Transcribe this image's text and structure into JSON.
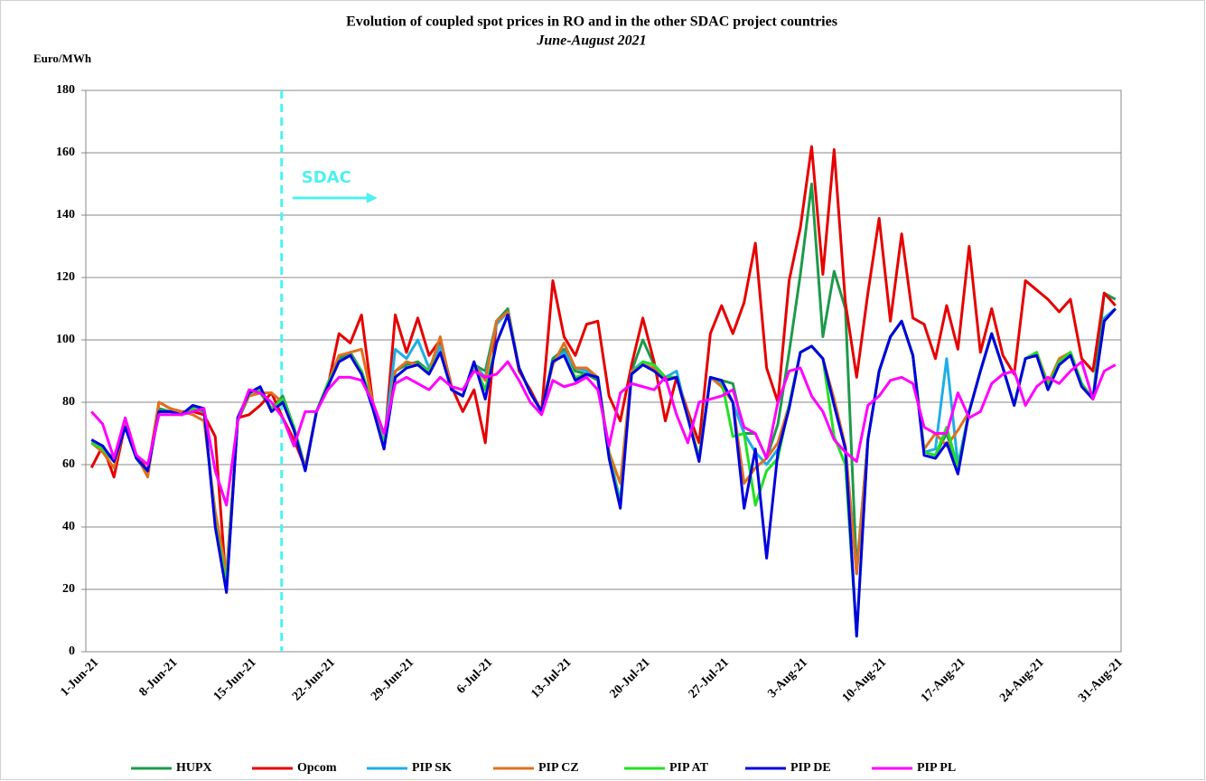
{
  "chart_data": {
    "type": "line",
    "title": "Evolution  of coupled spot prices in RO and in the other SDAC project countries",
    "subtitle": "June-August 2021",
    "y_label": "Euro/MWh",
    "annotation": "SDAC",
    "categories": [
      "1-Jun-21",
      null,
      null,
      null,
      null,
      null,
      null,
      "8-Jun-21",
      null,
      null,
      null,
      null,
      null,
      null,
      "15-Jun-21",
      null,
      null,
      null,
      null,
      null,
      null,
      "22-Jun-21",
      null,
      null,
      null,
      null,
      null,
      null,
      "29-Jun-21",
      null,
      null,
      null,
      null,
      null,
      null,
      "6-Jul-21",
      null,
      null,
      null,
      null,
      null,
      null,
      "13-Jul-21",
      null,
      null,
      null,
      null,
      null,
      null,
      "20-Jul-21",
      null,
      null,
      null,
      null,
      null,
      null,
      "27-Jul-21",
      null,
      null,
      null,
      null,
      null,
      null,
      "3-Aug-21",
      null,
      null,
      null,
      null,
      null,
      null,
      "10-Aug-21",
      null,
      null,
      null,
      null,
      null,
      null,
      "17-Aug-21",
      null,
      null,
      null,
      null,
      null,
      null,
      "24-Aug-21",
      null,
      null,
      null,
      null,
      null,
      null,
      "31-Aug-21"
    ],
    "ylim": [
      0,
      180
    ],
    "yticks": [
      0,
      20,
      40,
      60,
      80,
      100,
      120,
      140,
      160,
      180
    ],
    "grid": true,
    "legend": "bottom",
    "series": [
      {
        "name": "HUPX",
        "color": "#1e9a4a",
        "values": [
          67,
          65,
          62,
          72,
          62,
          57,
          78,
          77,
          76,
          78,
          77,
          42,
          25,
          74,
          82,
          83,
          78,
          82,
          72,
          59,
          77,
          86,
          94,
          96,
          90,
          79,
          66,
          90,
          92,
          93,
          90,
          100,
          84,
          82,
          92,
          90,
          106,
          110,
          91,
          83,
          77,
          94,
          97,
          90,
          89,
          87,
          63,
          48,
          90,
          100,
          92,
          88,
          88,
          76,
          62,
          88,
          87,
          86,
          70,
          70,
          62,
          73,
          96,
          121,
          150,
          101,
          122,
          110,
          26,
          68,
          90,
          101,
          106,
          95,
          64,
          63,
          70,
          59,
          77,
          90,
          102,
          91,
          79,
          94,
          96,
          85,
          93,
          96,
          86,
          81,
          115,
          113
        ]
      },
      {
        "name": "Opcom",
        "color": "#e60000",
        "values": [
          59,
          66,
          56,
          73,
          63,
          58,
          80,
          78,
          77,
          77,
          76,
          69,
          20,
          75,
          76,
          79,
          83,
          75,
          68,
          59,
          77,
          85,
          102,
          99,
          108,
          80,
          65,
          108,
          96,
          107,
          95,
          100,
          85,
          77,
          84,
          67,
          106,
          109,
          90,
          84,
          77,
          119,
          101,
          95,
          105,
          106,
          82,
          74,
          92,
          107,
          93,
          74,
          88,
          77,
          67,
          102,
          111,
          102,
          112,
          131,
          91,
          80,
          119,
          136,
          162,
          121,
          161,
          112,
          88,
          115,
          139,
          106,
          134,
          107,
          105,
          94,
          111,
          97,
          130,
          96,
          110,
          95,
          89,
          119,
          116,
          113,
          109,
          113,
          94,
          90,
          115,
          111
        ]
      },
      {
        "name": "PIP SK",
        "color": "#1eaee6",
        "values": [
          67,
          65,
          62,
          72,
          62,
          58,
          77,
          77,
          76,
          78,
          78,
          41,
          22,
          75,
          83,
          84,
          78,
          81,
          72,
          59,
          77,
          86,
          93,
          95,
          90,
          79,
          67,
          97,
          94,
          100,
          91,
          98,
          84,
          82,
          92,
          88,
          105,
          109,
          91,
          83,
          77,
          93,
          96,
          91,
          90,
          88,
          64,
          48,
          90,
          93,
          92,
          88,
          90,
          75,
          62,
          88,
          86,
          80,
          70,
          64,
          60,
          65,
          79,
          96,
          98,
          94,
          80,
          65,
          25,
          68,
          90,
          101,
          106,
          95,
          64,
          65,
          94,
          60,
          77,
          90,
          102,
          91,
          79,
          94,
          96,
          85,
          93,
          96,
          86,
          81,
          107,
          110
        ]
      },
      {
        "name": "PIP CZ",
        "color": "#e07020",
        "values": [
          67,
          64,
          59,
          73,
          63,
          56,
          80,
          78,
          77,
          76,
          74,
          45,
          25,
          75,
          82,
          83,
          83,
          80,
          71,
          59,
          77,
          86,
          95,
          96,
          97,
          80,
          66,
          90,
          93,
          92,
          90,
          101,
          84,
          82,
          92,
          87,
          106,
          109,
          91,
          83,
          77,
          92,
          99,
          91,
          91,
          88,
          64,
          54,
          90,
          92,
          91,
          88,
          88,
          76,
          62,
          88,
          85,
          80,
          54,
          59,
          62,
          67,
          79,
          96,
          98,
          94,
          81,
          66,
          25,
          68,
          90,
          101,
          106,
          95,
          65,
          70,
          66,
          71,
          77,
          90,
          102,
          91,
          79,
          94,
          96,
          86,
          94,
          96,
          86,
          81,
          106,
          110
        ]
      },
      {
        "name": "PIP AT",
        "color": "#22e022",
        "values": [
          67,
          65,
          61,
          72,
          62,
          58,
          77,
          77,
          76,
          78,
          78,
          41,
          22,
          75,
          83,
          84,
          78,
          81,
          72,
          58,
          77,
          86,
          93,
          95,
          90,
          79,
          66,
          88,
          91,
          92,
          90,
          96,
          84,
          82,
          92,
          84,
          99,
          108,
          91,
          83,
          77,
          93,
          95,
          88,
          89,
          88,
          63,
          47,
          89,
          93,
          92,
          88,
          88,
          75,
          62,
          88,
          87,
          69,
          70,
          47,
          58,
          62,
          79,
          96,
          98,
          94,
          69,
          60,
          5,
          68,
          90,
          101,
          106,
          95,
          64,
          63,
          72,
          59,
          77,
          90,
          102,
          91,
          79,
          94,
          96,
          85,
          93,
          96,
          86,
          81,
          106,
          110
        ]
      },
      {
        "name": "PIP DE",
        "color": "#0000e0",
        "values": [
          68,
          66,
          61,
          72,
          62,
          58,
          77,
          77,
          76,
          79,
          78,
          40,
          19,
          75,
          83,
          85,
          77,
          80,
          71,
          58,
          77,
          85,
          93,
          95,
          89,
          78,
          65,
          88,
          91,
          92,
          89,
          96,
          84,
          82,
          93,
          81,
          99,
          108,
          91,
          83,
          77,
          93,
          95,
          87,
          89,
          88,
          62,
          46,
          89,
          92,
          90,
          87,
          88,
          75,
          61,
          88,
          87,
          80,
          46,
          65,
          30,
          64,
          78,
          96,
          98,
          94,
          79,
          65,
          5,
          68,
          90,
          101,
          106,
          95,
          63,
          62,
          67,
          57,
          77,
          90,
          102,
          91,
          79,
          94,
          95,
          84,
          92,
          95,
          85,
          81,
          106,
          110
        ]
      },
      {
        "name": "PIP PL",
        "color": "#ff00ff",
        "values": [
          77,
          73,
          62,
          75,
          63,
          60,
          76,
          76,
          76,
          77,
          78,
          58,
          47,
          74,
          84,
          83,
          80,
          75,
          66,
          77,
          77,
          84,
          88,
          88,
          87,
          80,
          70,
          86,
          88,
          86,
          84,
          88,
          85,
          84,
          90,
          88,
          89,
          93,
          87,
          80,
          76,
          87,
          85,
          86,
          88,
          84,
          66,
          83,
          86,
          85,
          84,
          88,
          76,
          67,
          80,
          81,
          82,
          84,
          72,
          70,
          62,
          80,
          90,
          91,
          82,
          77,
          68,
          64,
          61,
          79,
          82,
          87,
          88,
          86,
          72,
          70,
          70,
          83,
          75,
          77,
          86,
          89,
          90,
          79,
          85,
          88,
          86,
          90,
          93,
          81,
          90,
          92
        ]
      }
    ]
  }
}
